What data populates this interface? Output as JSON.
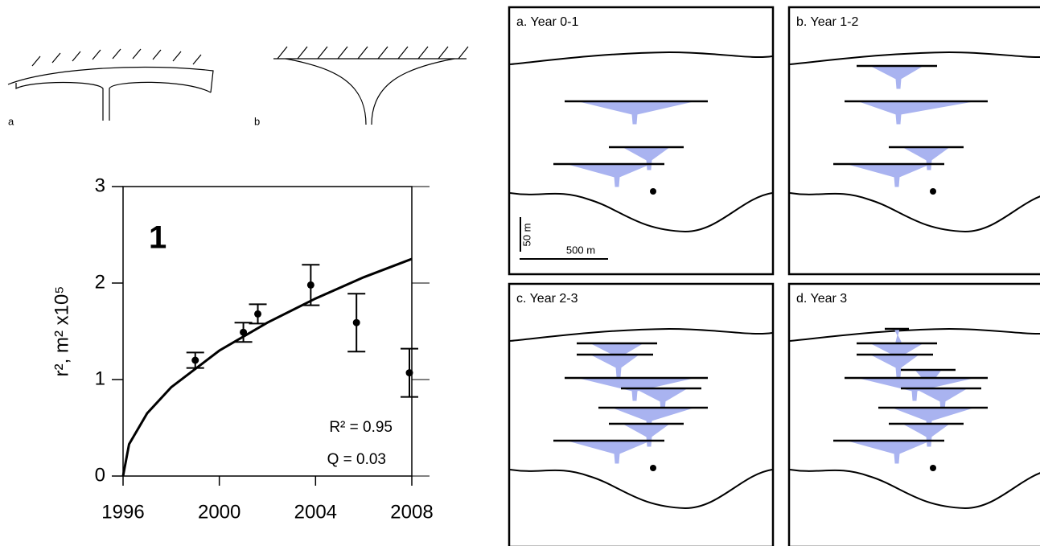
{
  "diagrams": {
    "labels": [
      "a",
      "b"
    ]
  },
  "chart_data": {
    "type": "scatter",
    "x": [
      1999,
      2001,
      2001.6,
      2003.8,
      2005.7,
      2007.9
    ],
    "values": [
      1.2,
      1.49,
      1.68,
      1.98,
      1.59,
      1.07
    ],
    "errors": [
      0.08,
      0.1,
      0.1,
      0.21,
      0.3,
      0.25
    ],
    "fit": {
      "x": [
        1996,
        1996.25,
        1997,
        1998,
        2000,
        2002,
        2004,
        2006,
        2008
      ],
      "values": [
        0,
        0.33,
        0.65,
        0.92,
        1.3,
        1.59,
        1.84,
        2.06,
        2.25
      ]
    },
    "xlim": [
      1996,
      2008
    ],
    "ylim": [
      0,
      3
    ],
    "xticks": [
      1996,
      2000,
      2004,
      2008
    ],
    "yticks": [
      0,
      1,
      2,
      3
    ],
    "ylabel": "r², m² x10⁵",
    "panel_label": "1",
    "annotations": [
      "R² = 0.95",
      "Q = 0.03"
    ],
    "color": "#000000"
  },
  "panels": [
    {
      "title": "a. Year 0-1"
    },
    {
      "title": "b. Year 1-2"
    },
    {
      "title": "c. Year 2-3"
    },
    {
      "title": "d. Year 3"
    }
  ],
  "scale_bars": [
    "50 m",
    "500 m"
  ]
}
